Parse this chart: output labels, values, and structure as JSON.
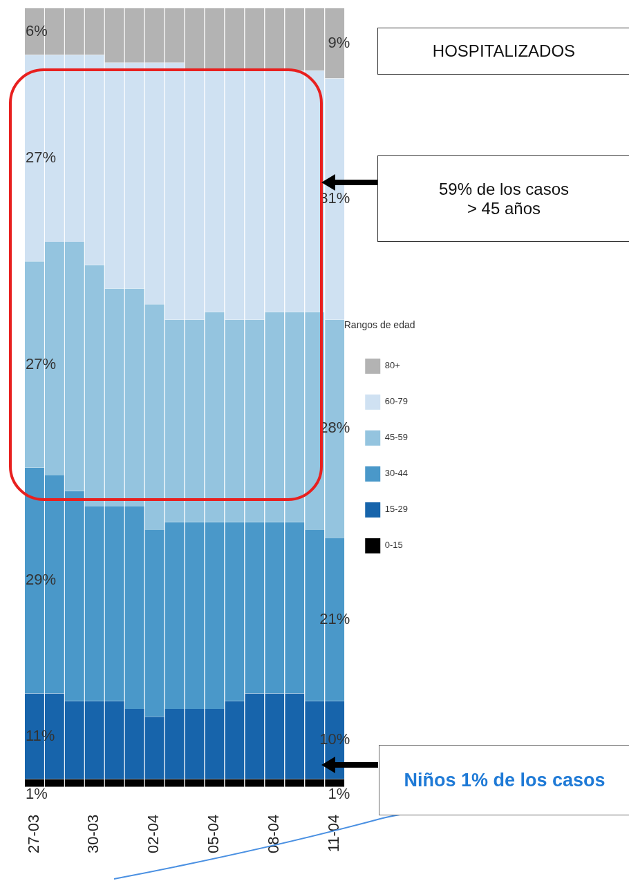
{
  "chart_data": {
    "type": "bar",
    "stacked": true,
    "categories": [
      "27-03",
      null,
      null,
      "30-03",
      null,
      null,
      "02-04",
      null,
      null,
      "05-04",
      null,
      null,
      "08-04",
      null,
      null,
      "11-04"
    ],
    "series": [
      {
        "name": "0-15",
        "color": "#000000",
        "values": [
          1,
          1,
          1,
          1,
          1,
          1,
          1,
          1,
          1,
          1,
          1,
          1,
          1,
          1,
          1,
          1
        ],
        "value_labels": [
          "1%",
          null,
          null,
          null,
          null,
          null,
          null,
          null,
          null,
          null,
          null,
          null,
          null,
          null,
          null,
          "1%"
        ]
      },
      {
        "name": "15-29",
        "color": "#1764ab",
        "values": [
          11,
          11,
          10,
          10,
          10,
          9,
          8,
          9,
          9,
          9,
          10,
          11,
          11,
          11,
          10,
          10
        ],
        "value_labels": [
          "11%",
          null,
          null,
          null,
          null,
          null,
          null,
          null,
          null,
          null,
          null,
          null,
          null,
          null,
          null,
          "10%"
        ]
      },
      {
        "name": "30-44",
        "color": "#4a98c9",
        "values": [
          29,
          28,
          27,
          25,
          25,
          26,
          24,
          24,
          24,
          24,
          23,
          22,
          22,
          22,
          22,
          21
        ],
        "value_labels": [
          "29%",
          null,
          null,
          null,
          null,
          null,
          null,
          null,
          null,
          null,
          null,
          null,
          null,
          null,
          null,
          "21%"
        ]
      },
      {
        "name": "45-59",
        "color": "#94c4df",
        "values": [
          26.5,
          30,
          32,
          31,
          28,
          28,
          29,
          26,
          26,
          27,
          26,
          26,
          27,
          27,
          28,
          28
        ],
        "value_labels": [
          "27%",
          null,
          null,
          null,
          null,
          null,
          null,
          null,
          null,
          null,
          null,
          null,
          null,
          null,
          null,
          "28%"
        ]
      },
      {
        "name": "60-79",
        "color": "#cfe1f2",
        "values": [
          26.5,
          24,
          24,
          27,
          29,
          29,
          31,
          33,
          32,
          31,
          32,
          32,
          31,
          31,
          31,
          31
        ],
        "value_labels": [
          "27%",
          null,
          null,
          null,
          null,
          null,
          null,
          null,
          null,
          null,
          null,
          null,
          null,
          null,
          null,
          "31%"
        ]
      },
      {
        "name": "80+",
        "color": "#b3b3b3",
        "values": [
          6,
          6,
          6,
          6,
          7,
          7,
          7,
          7,
          8,
          8,
          8,
          8,
          8,
          8,
          8,
          9
        ],
        "value_labels": [
          "6%",
          null,
          null,
          null,
          null,
          null,
          null,
          null,
          null,
          null,
          null,
          null,
          null,
          null,
          null,
          "9%"
        ]
      }
    ],
    "ylim": [
      0,
      100
    ],
    "tick_labels": "x",
    "grid": false,
    "legend": "right",
    "legend_title": "Rangos de edad",
    "annotations": [
      "HOSPITALIZADOS",
      "59% de los casos\n> 45 años",
      "Niños 1% de los casos"
    ]
  }
}
